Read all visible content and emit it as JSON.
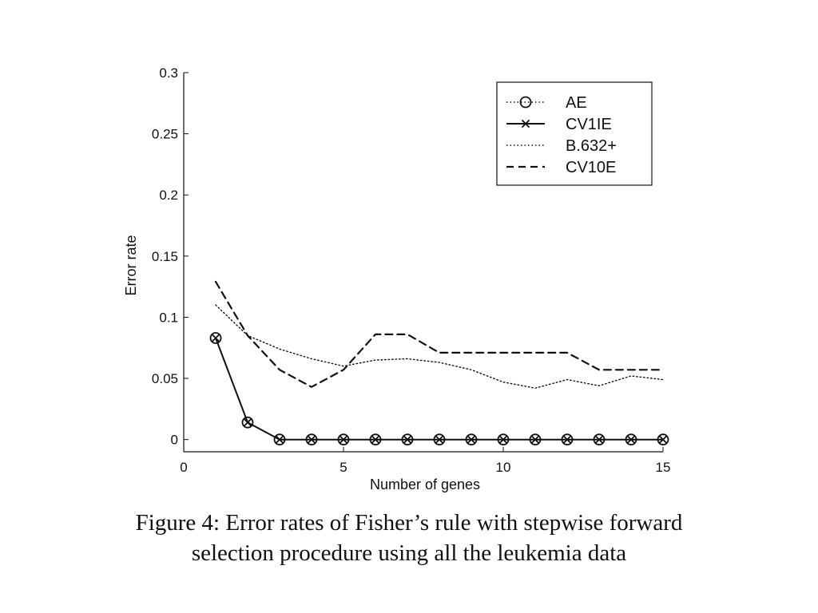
{
  "chart_data": {
    "type": "line",
    "xlabel": "Number of genes",
    "ylabel": "Error rate",
    "xlim": [
      0,
      15
    ],
    "ylim": [
      -0.01,
      0.3
    ],
    "xticks": [
      "0",
      "5",
      "10",
      "15"
    ],
    "yticks": [
      "0",
      "0.05",
      "0.1",
      "0.15",
      "0.2",
      "0.25",
      "0.3"
    ],
    "legend_position": "top-right",
    "series": [
      {
        "name": "AE",
        "style": "dotted-circle",
        "x": [
          1,
          2,
          3,
          4,
          5,
          6,
          7,
          8,
          9,
          10,
          11,
          12,
          13,
          14,
          15
        ],
        "values": [
          0.083,
          0.014,
          0,
          0,
          0,
          0,
          0,
          0,
          0,
          0,
          0,
          0,
          0,
          0,
          0
        ]
      },
      {
        "name": "CV1IE",
        "style": "solid-x",
        "x": [
          1,
          2,
          3,
          4,
          5,
          6,
          7,
          8,
          9,
          10,
          11,
          12,
          13,
          14,
          15
        ],
        "values": [
          0.083,
          0.014,
          0,
          0,
          0,
          0,
          0,
          0,
          0,
          0,
          0,
          0,
          0,
          0,
          0
        ]
      },
      {
        "name": "B.632+",
        "style": "dotted",
        "x": [
          1,
          2,
          3,
          4,
          5,
          6,
          7,
          8,
          9,
          10,
          11,
          12,
          13,
          14,
          15
        ],
        "values": [
          0.11,
          0.085,
          0.074,
          0.066,
          0.06,
          0.065,
          0.066,
          0.063,
          0.057,
          0.047,
          0.042,
          0.049,
          0.044,
          0.052,
          0.049
        ]
      },
      {
        "name": "CV10E",
        "style": "dashed",
        "x": [
          1,
          2,
          3,
          4,
          5,
          6,
          7,
          8,
          9,
          10,
          11,
          12,
          13,
          14,
          15
        ],
        "values": [
          0.129,
          0.085,
          0.057,
          0.043,
          0.057,
          0.086,
          0.086,
          0.071,
          0.071,
          0.071,
          0.071,
          0.071,
          0.057,
          0.057,
          0.057
        ]
      }
    ]
  },
  "caption": {
    "line1": "Figure 4: Error rates of Fisher’s rule with stepwise forward",
    "line2": "selection procedure using all the leukemia data"
  }
}
